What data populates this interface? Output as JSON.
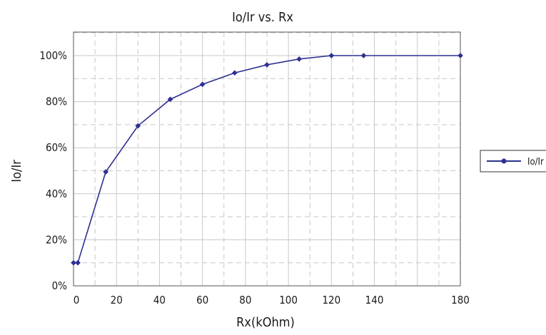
{
  "chart_data": {
    "type": "line",
    "title": "Io/Ir vs. Rx",
    "xlabel": "Rx(kOhm)",
    "ylabel": "Io/Ir",
    "xlim": [
      0,
      180
    ],
    "ylim": [
      0,
      100
    ],
    "x_ticks": [
      {
        "value": 0,
        "label": "0"
      },
      {
        "value": 20,
        "label": "20"
      },
      {
        "value": 40,
        "label": "40"
      },
      {
        "value": 60,
        "label": "60"
      },
      {
        "value": 80,
        "label": "80"
      },
      {
        "value": 100,
        "label": "100"
      },
      {
        "value": 120,
        "label": "120"
      },
      {
        "value": 140,
        "label": "140"
      },
      {
        "value": 180,
        "label": "180"
      }
    ],
    "y_ticks": [
      {
        "value": 0,
        "label": "0%"
      },
      {
        "value": 20,
        "label": "20%"
      },
      {
        "value": 40,
        "label": "40%"
      },
      {
        "value": 60,
        "label": "60%"
      },
      {
        "value": 80,
        "label": "80%"
      },
      {
        "value": 100,
        "label": "100%"
      }
    ],
    "grid": true,
    "legend_position": "right",
    "series": [
      {
        "name": "Io/Ir",
        "color": "#2e3192",
        "x": [
          0,
          2,
          15,
          30,
          45,
          60,
          75,
          90,
          105,
          120,
          135,
          180
        ],
        "y": [
          10,
          10,
          49.5,
          69.5,
          81,
          87.5,
          92.5,
          96,
          98.5,
          100,
          100,
          100
        ]
      }
    ]
  }
}
